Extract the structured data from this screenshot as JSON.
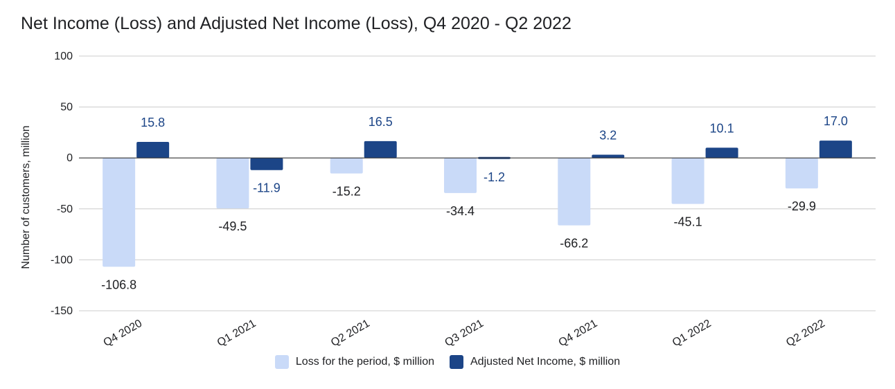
{
  "chart_data": {
    "type": "bar",
    "title": "Net Income (Loss) and Adjusted Net Income (Loss), Q4 2020 - Q2 2022",
    "ylabel": "Number of customers, million",
    "xlabel": "",
    "ylim": [
      -150,
      100
    ],
    "yticks": [
      100,
      50,
      0,
      -50,
      -100,
      -150
    ],
    "grid": true,
    "legend_position": "bottom",
    "categories": [
      "Q4 2020",
      "Q1 2021",
      "Q2 2021",
      "Q3 2021",
      "Q4 2021",
      "Q1 2022",
      "Q2 2022"
    ],
    "series": [
      {
        "name": "Loss for the period, $ million",
        "color": "#c9daf8",
        "label_color": "#202124",
        "values": [
          -106.8,
          -49.5,
          -15.2,
          -34.4,
          -66.2,
          -45.1,
          -29.9
        ],
        "labels": [
          "-106.8",
          "-49.5",
          "-15.2",
          "-34.4",
          "-66.2",
          "-45.1",
          "-29.9"
        ]
      },
      {
        "name": "Adjusted Net Income, $ million",
        "color": "#1c4587",
        "label_color": "#1c4587",
        "values": [
          15.8,
          -11.9,
          16.5,
          -1.2,
          3.2,
          10.1,
          17.0
        ],
        "labels": [
          "15.8",
          "-11.9",
          "16.5",
          "-1.2",
          "3.2",
          "10.1",
          "17.0"
        ]
      }
    ]
  }
}
